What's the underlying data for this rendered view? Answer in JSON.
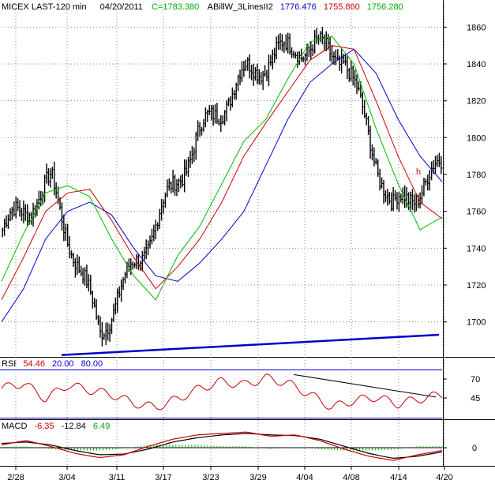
{
  "chart_data": [
    {
      "type": "ohlc",
      "header": {
        "symbol": "MICEX LAST-120 min",
        "date": "04/20/2011",
        "close_text": "C=1783.380",
        "indicator_name": "ABillW_3LinesII2",
        "ind_values": [
          "1776.476",
          "1755.860",
          "1756.280"
        ]
      },
      "x_ticks": [
        "2/28",
        "3/04",
        "3/11",
        "3/17",
        "3/23",
        "3/29",
        "4/04",
        "4/08",
        "4/14",
        "4/20"
      ],
      "y_ticks": [
        1700,
        1720,
        1740,
        1760,
        1780,
        1800,
        1820,
        1840,
        1860
      ],
      "ylim": [
        1681,
        1867
      ],
      "annotation": "h",
      "close_series": [
        {
          "label": "2/28",
          "close": 1750
        },
        {
          "label": "3/04",
          "close": 1775
        },
        {
          "label": "3/11",
          "close": 1695
        },
        {
          "label": "3/17",
          "close": 1745
        },
        {
          "label": "3/23",
          "close": 1800
        },
        {
          "label": "3/29",
          "close": 1835
        },
        {
          "label": "4/04",
          "close": 1850
        },
        {
          "label": "4/08",
          "close": 1845
        },
        {
          "label": "4/14",
          "close": 1760
        },
        {
          "label": "4/20",
          "close": 1783.38
        }
      ],
      "lines": [
        {
          "name": "blue",
          "color": "#0000cc",
          "values": [
            1700,
            1718,
            1745,
            1760,
            1765,
            1758,
            1740,
            1725,
            1722,
            1732,
            1745,
            1760,
            1785,
            1810,
            1830,
            1840,
            1848,
            1835,
            1810,
            1790,
            1776
          ]
        },
        {
          "name": "red",
          "color": "#cc0000",
          "values": [
            1712,
            1735,
            1760,
            1770,
            1772,
            1755,
            1735,
            1718,
            1730,
            1745,
            1765,
            1790,
            1808,
            1825,
            1842,
            1850,
            1848,
            1820,
            1790,
            1765,
            1756
          ]
        },
        {
          "name": "green",
          "color": "#00bb00",
          "values": [
            1722,
            1748,
            1770,
            1774,
            1768,
            1745,
            1725,
            1712,
            1736,
            1752,
            1775,
            1798,
            1810,
            1832,
            1852,
            1855,
            1840,
            1805,
            1775,
            1750,
            1757
          ]
        }
      ],
      "trendline": {
        "from": 1682,
        "to": 1693,
        "color": "#0000cc"
      }
    },
    {
      "type": "line",
      "name": "RSI",
      "value": "54.46",
      "levels": [
        "20.00",
        "80.00"
      ],
      "y_ticks": [
        45,
        70
      ],
      "series": [
        62,
        68,
        50,
        66,
        60,
        55,
        45,
        40,
        50,
        62,
        70,
        66,
        74,
        68,
        55,
        40,
        48,
        52,
        44,
        50,
        55
      ],
      "trendline": {
        "from": 78,
        "to": 52
      }
    },
    {
      "type": "line",
      "name": "MACD",
      "values": [
        "-6.35",
        "-12.84",
        "6.49"
      ],
      "y_ticks": [
        0
      ],
      "macd": [
        4,
        10,
        2,
        -8,
        -14,
        -10,
        2,
        12,
        18,
        20,
        22,
        16,
        18,
        10,
        -2,
        -12,
        -18,
        -10,
        -4
      ],
      "signal": [
        6,
        8,
        4,
        -4,
        -10,
        -9,
        -2,
        8,
        14,
        18,
        20,
        18,
        17,
        12,
        2,
        -8,
        -15,
        -12,
        -6
      ],
      "histogram": [
        1,
        2,
        -2,
        -4,
        -4,
        -1,
        4,
        4,
        4,
        2,
        2,
        -2,
        1,
        -2,
        -4,
        -4,
        -3,
        2,
        2
      ]
    }
  ],
  "colors": {
    "value_blue": "#0000cc",
    "value_red": "#cc0000",
    "value_green": "#00aa00",
    "grid": "#888888"
  }
}
